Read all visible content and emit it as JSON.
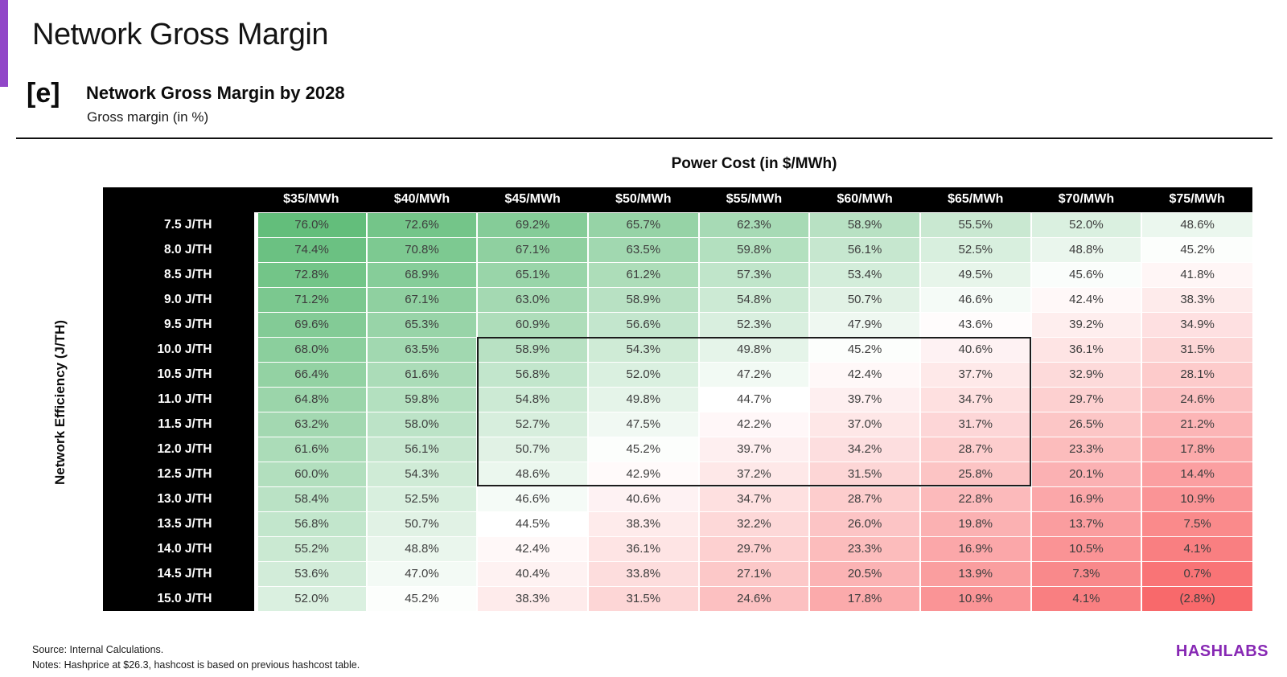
{
  "page": {
    "title": "Network Gross Margin",
    "exhibit_mark": "[e]",
    "chart_title": "Network Gross Margin by 2028",
    "chart_subtitle": "Gross margin (in %)"
  },
  "chart_data": {
    "type": "heatmap",
    "title": "Network Gross Margin by 2028",
    "subtitle": "Gross margin (in %)",
    "xlabel": "Power Cost (in $/MWh)",
    "ylabel": "Network Efficiency (J/TH)",
    "columns": [
      "$35/MWh",
      "$40/MWh",
      "$45/MWh",
      "$50/MWh",
      "$55/MWh",
      "$60/MWh",
      "$65/MWh",
      "$70/MWh",
      "$75/MWh"
    ],
    "rows": [
      "7.5 J/TH",
      "8.0 J/TH",
      "8.5 J/TH",
      "9.0 J/TH",
      "9.5 J/TH",
      "10.0 J/TH",
      "10.5 J/TH",
      "11.0 J/TH",
      "11.5 J/TH",
      "12.0 J/TH",
      "12.5 J/TH",
      "13.0 J/TH",
      "13.5 J/TH",
      "14.0 J/TH",
      "14.5 J/TH",
      "15.0 J/TH"
    ],
    "values": [
      [
        76.0,
        72.6,
        69.2,
        65.7,
        62.3,
        58.9,
        55.5,
        52.0,
        48.6
      ],
      [
        74.4,
        70.8,
        67.1,
        63.5,
        59.8,
        56.1,
        52.5,
        48.8,
        45.2
      ],
      [
        72.8,
        68.9,
        65.1,
        61.2,
        57.3,
        53.4,
        49.5,
        45.6,
        41.8
      ],
      [
        71.2,
        67.1,
        63.0,
        58.9,
        54.8,
        50.7,
        46.6,
        42.4,
        38.3
      ],
      [
        69.6,
        65.3,
        60.9,
        56.6,
        52.3,
        47.9,
        43.6,
        39.2,
        34.9
      ],
      [
        68.0,
        63.5,
        58.9,
        54.3,
        49.8,
        45.2,
        40.6,
        36.1,
        31.5
      ],
      [
        66.4,
        61.6,
        56.8,
        52.0,
        47.2,
        42.4,
        37.7,
        32.9,
        28.1
      ],
      [
        64.8,
        59.8,
        54.8,
        49.8,
        44.7,
        39.7,
        34.7,
        29.7,
        24.6
      ],
      [
        63.2,
        58.0,
        52.7,
        47.5,
        42.2,
        37.0,
        31.7,
        26.5,
        21.2
      ],
      [
        61.6,
        56.1,
        50.7,
        45.2,
        39.7,
        34.2,
        28.7,
        23.3,
        17.8
      ],
      [
        60.0,
        54.3,
        48.6,
        42.9,
        37.2,
        31.5,
        25.8,
        20.1,
        14.4
      ],
      [
        58.4,
        52.5,
        46.6,
        40.6,
        34.7,
        28.7,
        22.8,
        16.9,
        10.9
      ],
      [
        56.8,
        50.7,
        44.5,
        38.3,
        32.2,
        26.0,
        19.8,
        13.7,
        7.5
      ],
      [
        55.2,
        48.8,
        42.4,
        36.1,
        29.7,
        23.3,
        16.9,
        10.5,
        4.1
      ],
      [
        53.6,
        47.0,
        40.4,
        33.8,
        27.1,
        20.5,
        13.9,
        7.3,
        0.7
      ],
      [
        52.0,
        45.2,
        38.3,
        31.5,
        24.6,
        17.8,
        10.9,
        4.1,
        -2.8
      ]
    ],
    "value_unit": "%",
    "negative_style": "parentheses",
    "colorscale": {
      "min_value": -2.8,
      "mid_value": 44.6,
      "max_value": 76.0,
      "min_color": "#F8696B",
      "mid_color": "#FFFFFF",
      "max_color": "#63BE7B"
    },
    "highlight_box": {
      "row_start": 5,
      "row_end": 10,
      "col_start": 2,
      "col_end": 6
    },
    "grid": false,
    "legend": "none"
  },
  "footer": {
    "source": "Source: Internal Calculations.",
    "notes": "Notes: Hashprice at $26.3, hashcost is based on previous hashcost table.",
    "brand": "HASHLABS"
  },
  "colors": {
    "accent_bar": "#9146C8",
    "brand": "#8728B4",
    "header_bg": "#000000"
  }
}
